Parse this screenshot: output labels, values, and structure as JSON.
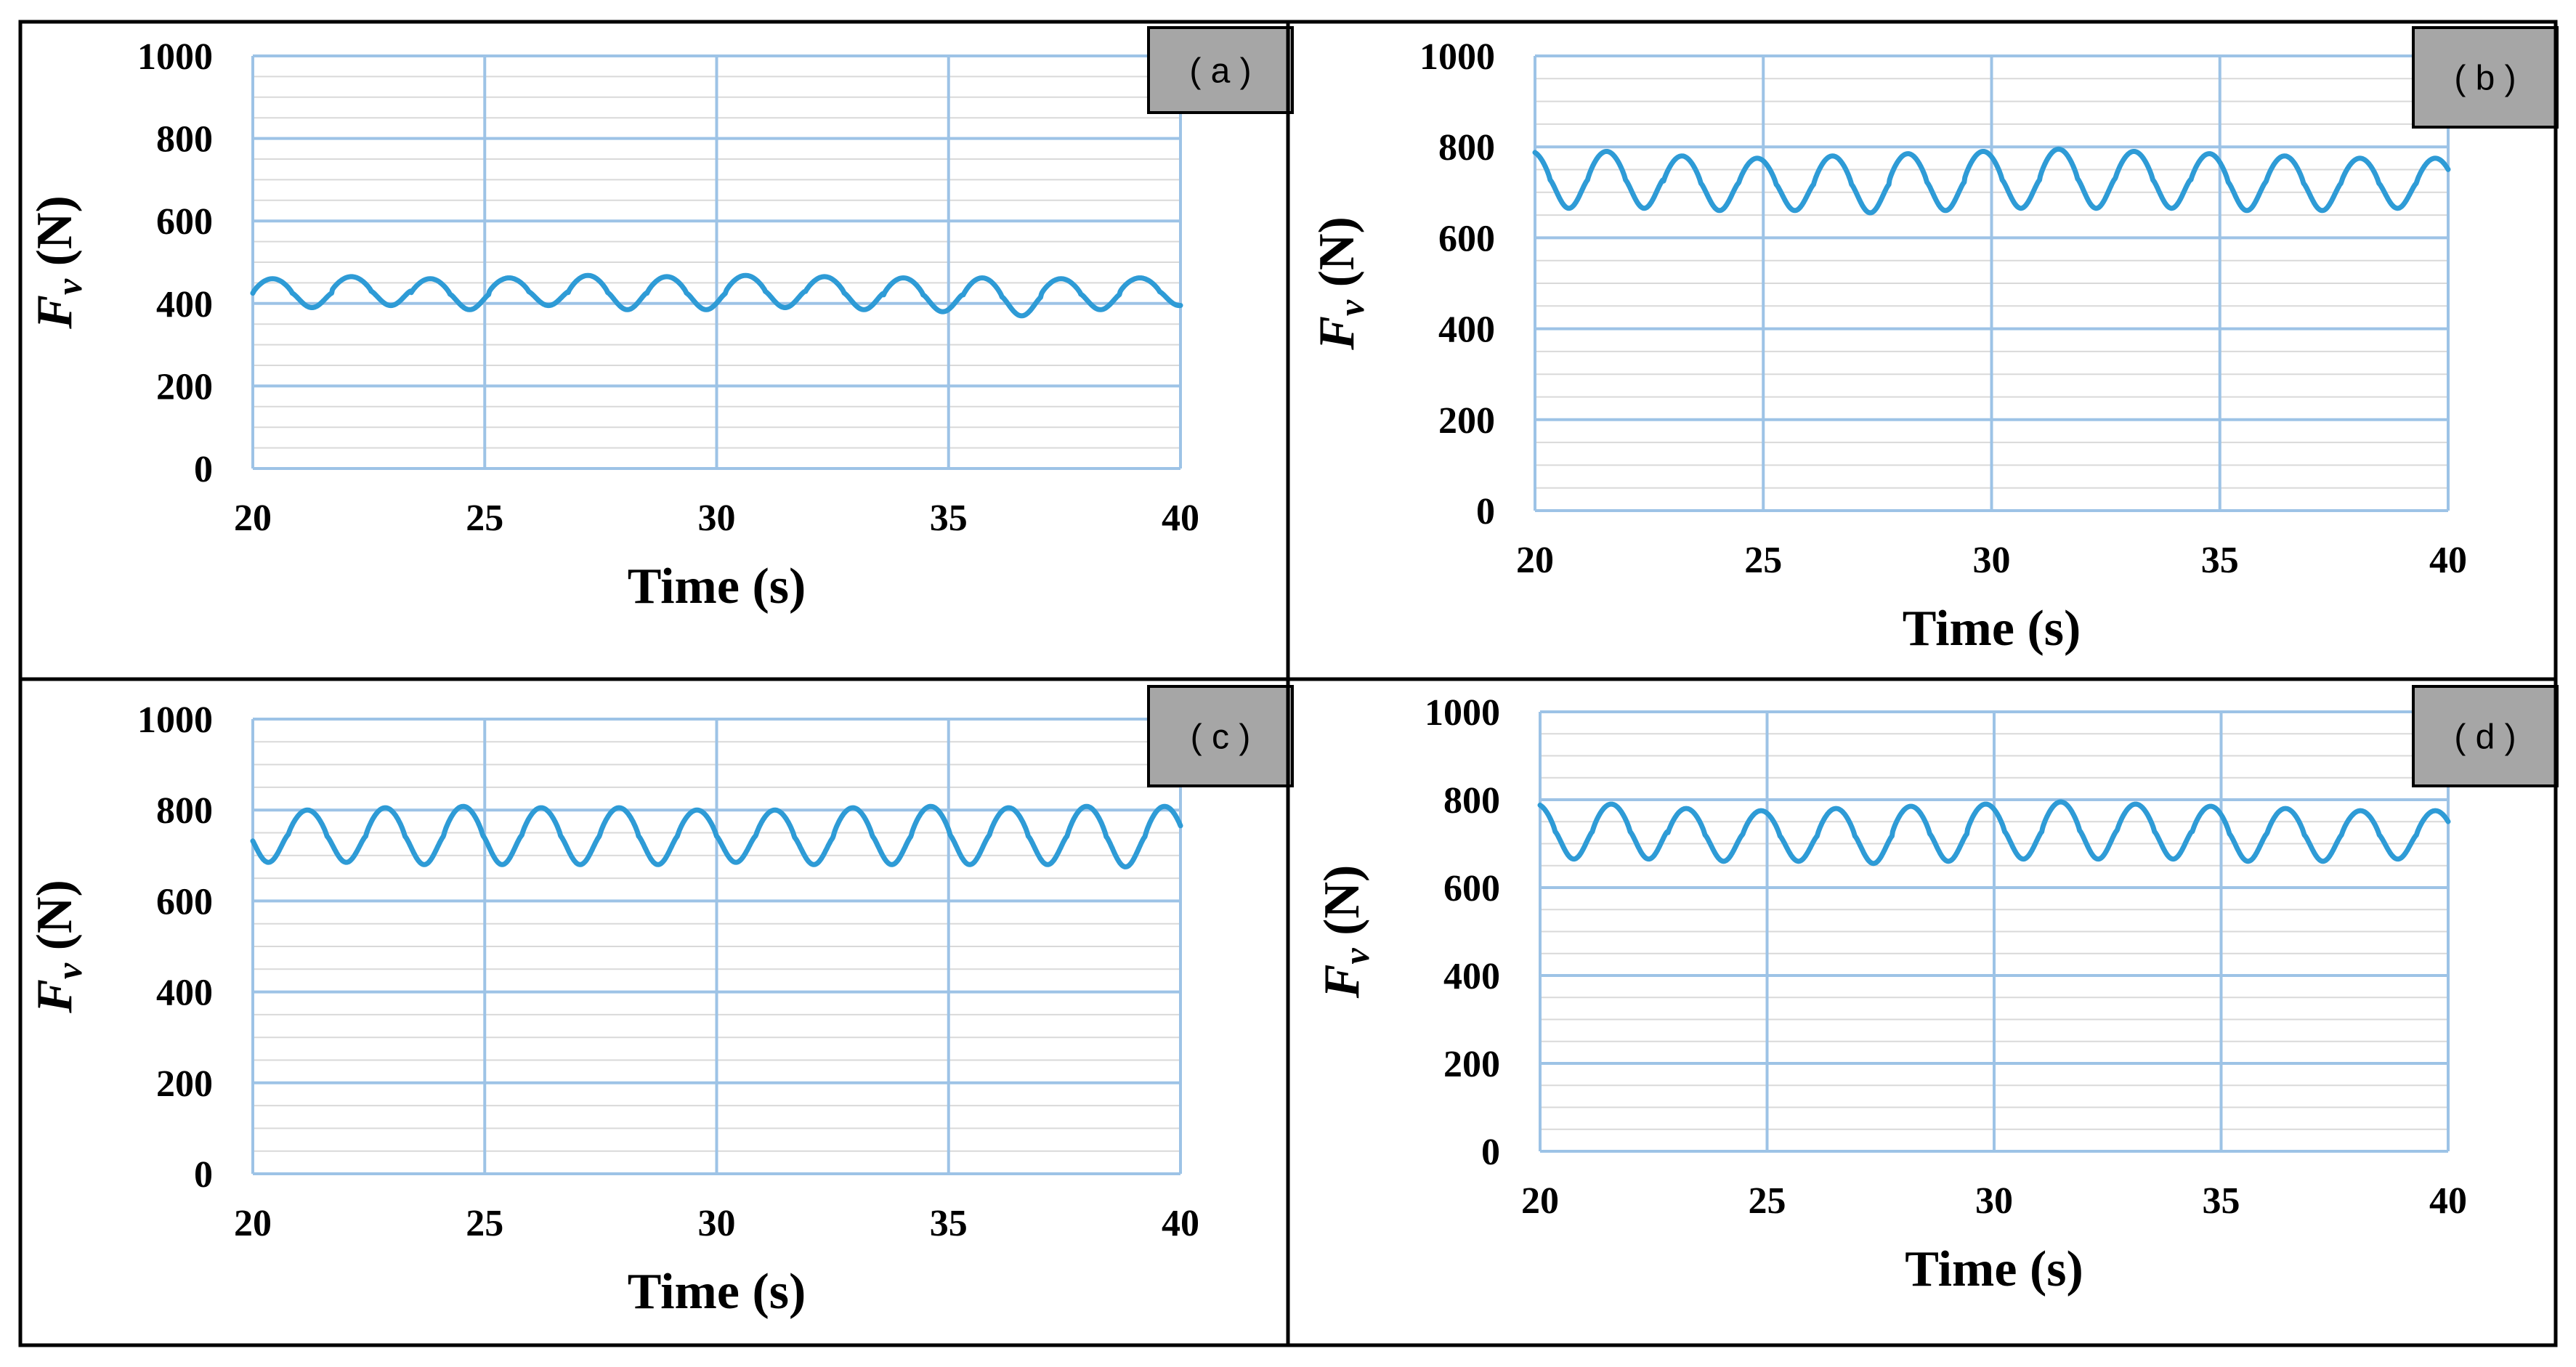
{
  "chart_data": [
    {
      "type": "line",
      "panel": "( a )",
      "xlabel": "Time (s)",
      "ylabel": {
        "symbol": "F",
        "subscript": "v",
        "unit": " (N)"
      },
      "xlim": [
        20,
        40
      ],
      "ylim": [
        0,
        1000
      ],
      "xticks": [
        "20",
        "25",
        "30",
        "35",
        "40"
      ],
      "yticks": [
        "0",
        "200",
        "400",
        "600",
        "800",
        "1000"
      ],
      "series": [
        {
          "name": "Fv",
          "color": "#2e9bd6",
          "mean": 425,
          "amplitude": 35,
          "period": 1.7,
          "phase": 0.0,
          "x": [
            20,
            20.85,
            21.7,
            22.55,
            23.4,
            24.25,
            25.1,
            25.95,
            26.8,
            27.65,
            28.5,
            29.35,
            30.2,
            31.05,
            31.9,
            32.75,
            33.6,
            34.45,
            35.3,
            36.15,
            37.0,
            37.85,
            38.7,
            39.55,
            40
          ],
          "peaks": [
            460,
            465,
            460,
            462,
            468,
            465,
            468,
            465,
            462,
            462,
            460,
            462
          ],
          "troughs": [
            390,
            395,
            385,
            395,
            385,
            385,
            390,
            385,
            380,
            370,
            385,
            395
          ]
        }
      ]
    },
    {
      "type": "line",
      "panel": "( b )",
      "xlabel": "Time (s)",
      "ylabel": {
        "symbol": "F",
        "subscript": "v",
        "unit": " (N)"
      },
      "xlim": [
        20,
        40
      ],
      "ylim": [
        0,
        1000
      ],
      "xticks": [
        "20",
        "25",
        "30",
        "35",
        "40"
      ],
      "yticks": [
        "0",
        "200",
        "400",
        "600",
        "800",
        "1000"
      ],
      "series": [
        {
          "name": "Fv",
          "color": "#2e9bd6",
          "mean": 725,
          "amplitude": 62,
          "period": 1.65,
          "phase": 0.3,
          "peaks": [
            790,
            790,
            780,
            775,
            780,
            785,
            790,
            795,
            790,
            785,
            780,
            775
          ],
          "troughs": [
            665,
            665,
            660,
            660,
            655,
            660,
            665,
            665,
            665,
            660,
            660,
            665
          ]
        }
      ]
    },
    {
      "type": "line",
      "panel": "( c )",
      "xlabel": "Time (s)",
      "ylabel": {
        "symbol": "F",
        "subscript": "v",
        "unit": " (N)"
      },
      "xlim": [
        20,
        40
      ],
      "ylim": [
        0,
        1000
      ],
      "xticks": [
        "20",
        "25",
        "30",
        "35",
        "40"
      ],
      "yticks": [
        "0",
        "200",
        "400",
        "600",
        "800",
        "1000"
      ],
      "series": [
        {
          "name": "Fv",
          "color": "#2e9bd6",
          "mean": 745,
          "amplitude": 62,
          "period": 1.68,
          "phase": 0.55,
          "peaks": [
            805,
            800,
            805,
            808,
            805,
            805,
            800,
            800,
            805,
            808,
            805,
            808
          ],
          "troughs": [
            685,
            685,
            680,
            680,
            680,
            680,
            685,
            680,
            680,
            680,
            680,
            675
          ]
        }
      ]
    },
    {
      "type": "line",
      "panel": "( d )",
      "xlabel": "Time (s)",
      "ylabel": {
        "symbol": "F",
        "subscript": "v",
        "unit": " (N)"
      },
      "xlim": [
        20,
        40
      ],
      "ylim": [
        0,
        1000
      ],
      "xticks": [
        "20",
        "25",
        "30",
        "35",
        "40"
      ],
      "yticks": [
        "0",
        "200",
        "400",
        "600",
        "800",
        "1000"
      ],
      "series": [
        {
          "name": "Fv",
          "color": "#2e9bd6",
          "mean": 725,
          "amplitude": 62,
          "period": 1.65,
          "phase": 0.3,
          "peaks": [
            790,
            790,
            780,
            775,
            780,
            785,
            790,
            795,
            790,
            785,
            780,
            775
          ],
          "troughs": [
            665,
            665,
            660,
            660,
            655,
            660,
            665,
            665,
            665,
            660,
            660,
            665
          ]
        }
      ]
    }
  ]
}
